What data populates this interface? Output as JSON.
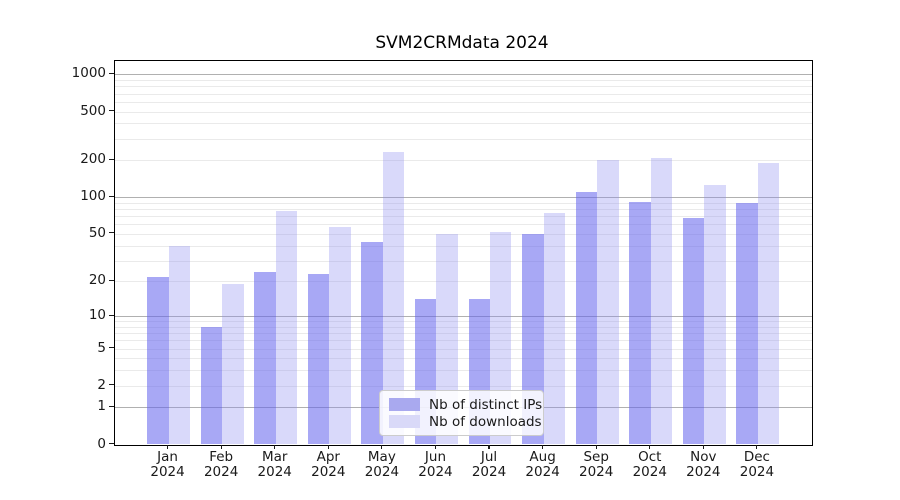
{
  "chart_data": {
    "type": "bar",
    "title": "SVM2CRMdata 2024",
    "categories": [
      "Jan 2024",
      "Feb 2024",
      "Mar 2024",
      "Apr 2024",
      "May 2024",
      "Jun 2024",
      "Jul 2024",
      "Aug 2024",
      "Sep 2024",
      "Oct 2024",
      "Nov 2024",
      "Dec 2024"
    ],
    "month_labels": [
      "Jan",
      "Feb",
      "Mar",
      "Apr",
      "May",
      "Jun",
      "Jul",
      "Aug",
      "Sep",
      "Oct",
      "Nov",
      "Dec"
    ],
    "year_label": "2024",
    "series": [
      {
        "name": "Nb of distinct IPs",
        "color": "#a9a9ef",
        "fill": "rgba(100,100,238,0.56)",
        "values": [
          22,
          8,
          24,
          23,
          43,
          14,
          14,
          50,
          110,
          92,
          68,
          90
        ]
      },
      {
        "name": "Nb of downloads",
        "color": "#d9d9f8",
        "fill": "rgba(140,140,240,0.33)",
        "values": [
          40,
          19,
          77,
          57,
          235,
          50,
          52,
          74,
          200,
          210,
          125,
          190
        ]
      }
    ],
    "yscale": "log1p",
    "yticks": [
      0,
      1,
      2,
      5,
      10,
      20,
      50,
      100,
      200,
      500,
      1000
    ],
    "ylim": [
      0,
      1320
    ],
    "grid": "horizontal",
    "legend_position": "lower center",
    "xlabel": "",
    "ylabel": ""
  },
  "colors": {
    "background": "#ffffff",
    "axis": "#000000",
    "text": "#1a1a1a",
    "grid_major": "#b0b0b0",
    "grid_minor": "#eaeaea",
    "legend_border": "#cccccc",
    "legend_bg": "rgba(255,255,255,0.85)"
  }
}
